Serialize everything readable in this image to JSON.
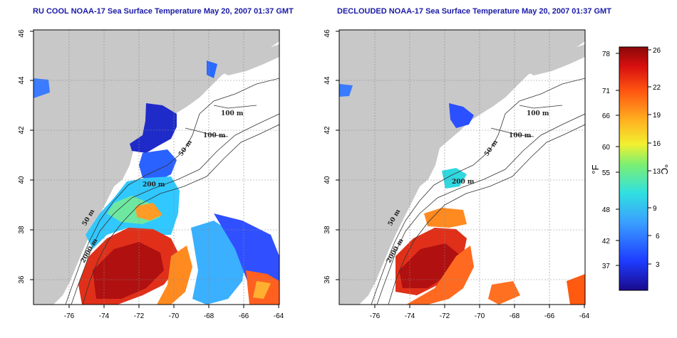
{
  "panels": [
    {
      "title": "RU COOL NOAA-17 Sea Surface Temperature May 20, 2007 01:37 GMT"
    },
    {
      "title": "DECLOUDED NOAA-17 Sea Surface Temperature May 20, 2007 01:37 GMT"
    }
  ],
  "axes": {
    "x_ticks": [
      "-76",
      "-74",
      "-72",
      "-70",
      "-68",
      "-66",
      "-64"
    ],
    "y_ticks": [
      "36",
      "38",
      "40",
      "42",
      "44",
      "46"
    ],
    "lon_range": [
      -77,
      -63
    ],
    "lat_range": [
      35,
      46
    ]
  },
  "contour_labels": [
    "100 m",
    "100 m",
    "50 m",
    "200 m",
    "50 m",
    "2000 m"
  ],
  "colorbar": {
    "unit_f": "°F",
    "unit_c": "°C",
    "f_ticks": [
      "78",
      "71",
      "66",
      "60",
      "55",
      "48",
      "42",
      "37"
    ],
    "c_ticks": [
      "26",
      "22",
      "19",
      "16",
      "13",
      "9",
      "6",
      "3"
    ],
    "range_c": [
      0,
      26
    ]
  },
  "colors": {
    "land": "#c8c8c8",
    "title": "#1a1aa6"
  }
}
